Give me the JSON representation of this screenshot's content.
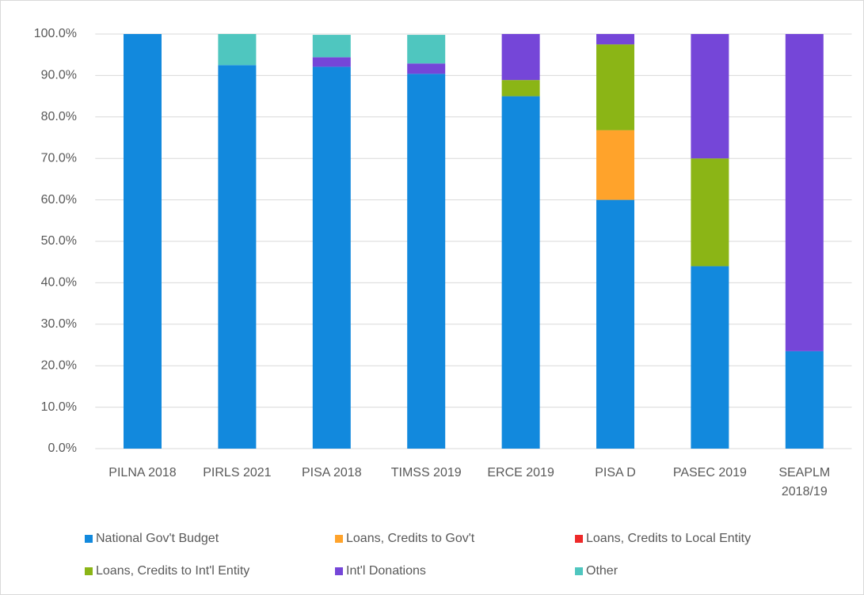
{
  "chart_data": {
    "type": "stacked_bar",
    "categories": [
      "PILNA 2018",
      "PIRLS 2021",
      "PISA 2018",
      "TIMSS 2019",
      "ERCE 2019",
      "PISA D",
      "PASEC 2019",
      "SEAPLM 2018/19"
    ],
    "series": [
      {
        "name": "National Gov't Budget",
        "color": "#1289dd",
        "values": [
          100,
          92.5,
          92.1,
          90.4,
          85,
          60,
          44,
          23.5
        ]
      },
      {
        "name": "Loans, Credits to Gov't",
        "color": "#ffa32b",
        "values": [
          0,
          0,
          0,
          0,
          0,
          16.8,
          0,
          0
        ]
      },
      {
        "name": "Loans, Credits to Local Entity",
        "color": "#ee2929",
        "values": [
          0,
          0,
          0,
          0,
          0,
          0,
          0,
          0
        ]
      },
      {
        "name": "Loans, Credits to Int'l Entity",
        "color": "#8bb516",
        "values": [
          0,
          0,
          0,
          0,
          3.9,
          20.7,
          26,
          0
        ]
      },
      {
        "name": "Int'l Donations",
        "color": "#7546d8",
        "values": [
          0,
          0,
          2.3,
          2.5,
          11.1,
          2.5,
          30,
          76.5
        ]
      },
      {
        "name": "Other",
        "color": "#4fc6bf",
        "values": [
          0,
          7.5,
          5.4,
          6.9,
          0,
          0,
          0,
          0
        ]
      }
    ],
    "ylim": [
      0,
      100
    ],
    "yticks": [
      {
        "value": 0,
        "label": "0.0%"
      },
      {
        "value": 10,
        "label": "10.0%"
      },
      {
        "value": 20,
        "label": "20.0%"
      },
      {
        "value": 30,
        "label": "30.0%"
      },
      {
        "value": 40,
        "label": "40.0%"
      },
      {
        "value": 50,
        "label": "50.0%"
      },
      {
        "value": 60,
        "label": "60.0%"
      },
      {
        "value": 70,
        "label": "70.0%"
      },
      {
        "value": 80,
        "label": "80.0%"
      },
      {
        "value": 90,
        "label": "90.0%"
      },
      {
        "value": 100,
        "label": "100.0%"
      }
    ],
    "grid": true,
    "legend": "bottom"
  }
}
